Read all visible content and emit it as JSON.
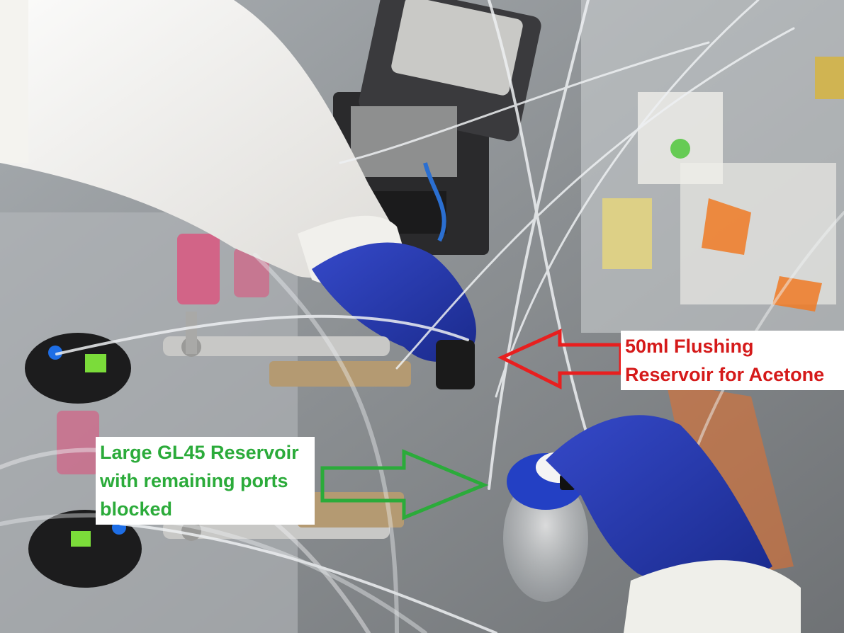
{
  "annotations": {
    "acetone_reservoir": {
      "label": "50ml Flushing\nReservoir for Acetone",
      "color": "#d51a1a"
    },
    "gl45_reservoir": {
      "label": "Large GL45 Reservoir\nwith remaining ports\nblocked",
      "color": "#2bab3a"
    }
  }
}
